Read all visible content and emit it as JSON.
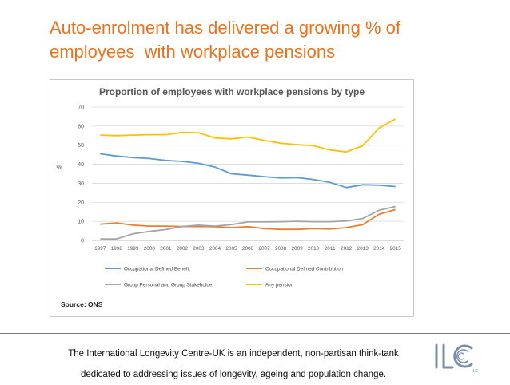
{
  "slide": {
    "title_line1": "Auto-enrolment has delivered a growing % of",
    "title_line2": "employees  with workplace pensions",
    "footer_line1": "The International Longevity Centre-UK is an independent, non-partisan think-tank",
    "footer_line2": "dedicated to addressing issues of longevity, ageing and population change.",
    "logo_text": "ILC",
    "title_color": "#e8731f",
    "logo_color": "#7a8fae"
  },
  "chart_data": {
    "type": "line",
    "title": "Proportion of employees with workplace pensions by type",
    "xlabel": "",
    "ylabel": "%",
    "source": "Source: ONS",
    "ylim": [
      0,
      70
    ],
    "yticks": [
      0,
      10,
      20,
      30,
      40,
      50,
      60,
      70
    ],
    "grid": true,
    "legend_position": "bottom",
    "x": [
      "1997",
      "1998",
      "1999",
      "2000",
      "2001",
      "2002",
      "2003",
      "2004",
      "2005",
      "2006",
      "2007",
      "2008",
      "2009",
      "2010",
      "2011",
      "2012",
      "2013",
      "2014",
      "2015"
    ],
    "series": [
      {
        "name": "Occupational Defined Benefit",
        "color": "#5b9bd5",
        "values": [
          45.5,
          44.3,
          43.5,
          43,
          42,
          41.5,
          40.5,
          38.5,
          35,
          34.3,
          33.5,
          32.8,
          33,
          32,
          30.5,
          27.8,
          29.2,
          29,
          28.3
        ]
      },
      {
        "name": "Occupational Defined Contribution",
        "color": "#ed7d31",
        "values": [
          8.5,
          9.2,
          8,
          7.5,
          7.5,
          7.3,
          7.3,
          7.2,
          6.7,
          7.2,
          6.2,
          5.8,
          5.8,
          6.2,
          6,
          6.7,
          8.3,
          13.7,
          16.2
        ]
      },
      {
        "name": "Group Personal and Group Stakeholder",
        "color": "#a5a5a5",
        "values": [
          0.8,
          0.8,
          3.5,
          4.7,
          5.7,
          7.3,
          8,
          7.5,
          8.3,
          9.7,
          9.7,
          9.8,
          10,
          9.8,
          9.8,
          10.2,
          11.5,
          15.8,
          17.8
        ]
      },
      {
        "name": "Any pension",
        "color": "#ffc000",
        "values": [
          55.3,
          55,
          55.3,
          55.5,
          55.5,
          56.7,
          56.5,
          53.8,
          53.3,
          54.3,
          52.5,
          51,
          50.3,
          49.7,
          47.5,
          46.5,
          49.7,
          59,
          63.7
        ]
      }
    ]
  }
}
